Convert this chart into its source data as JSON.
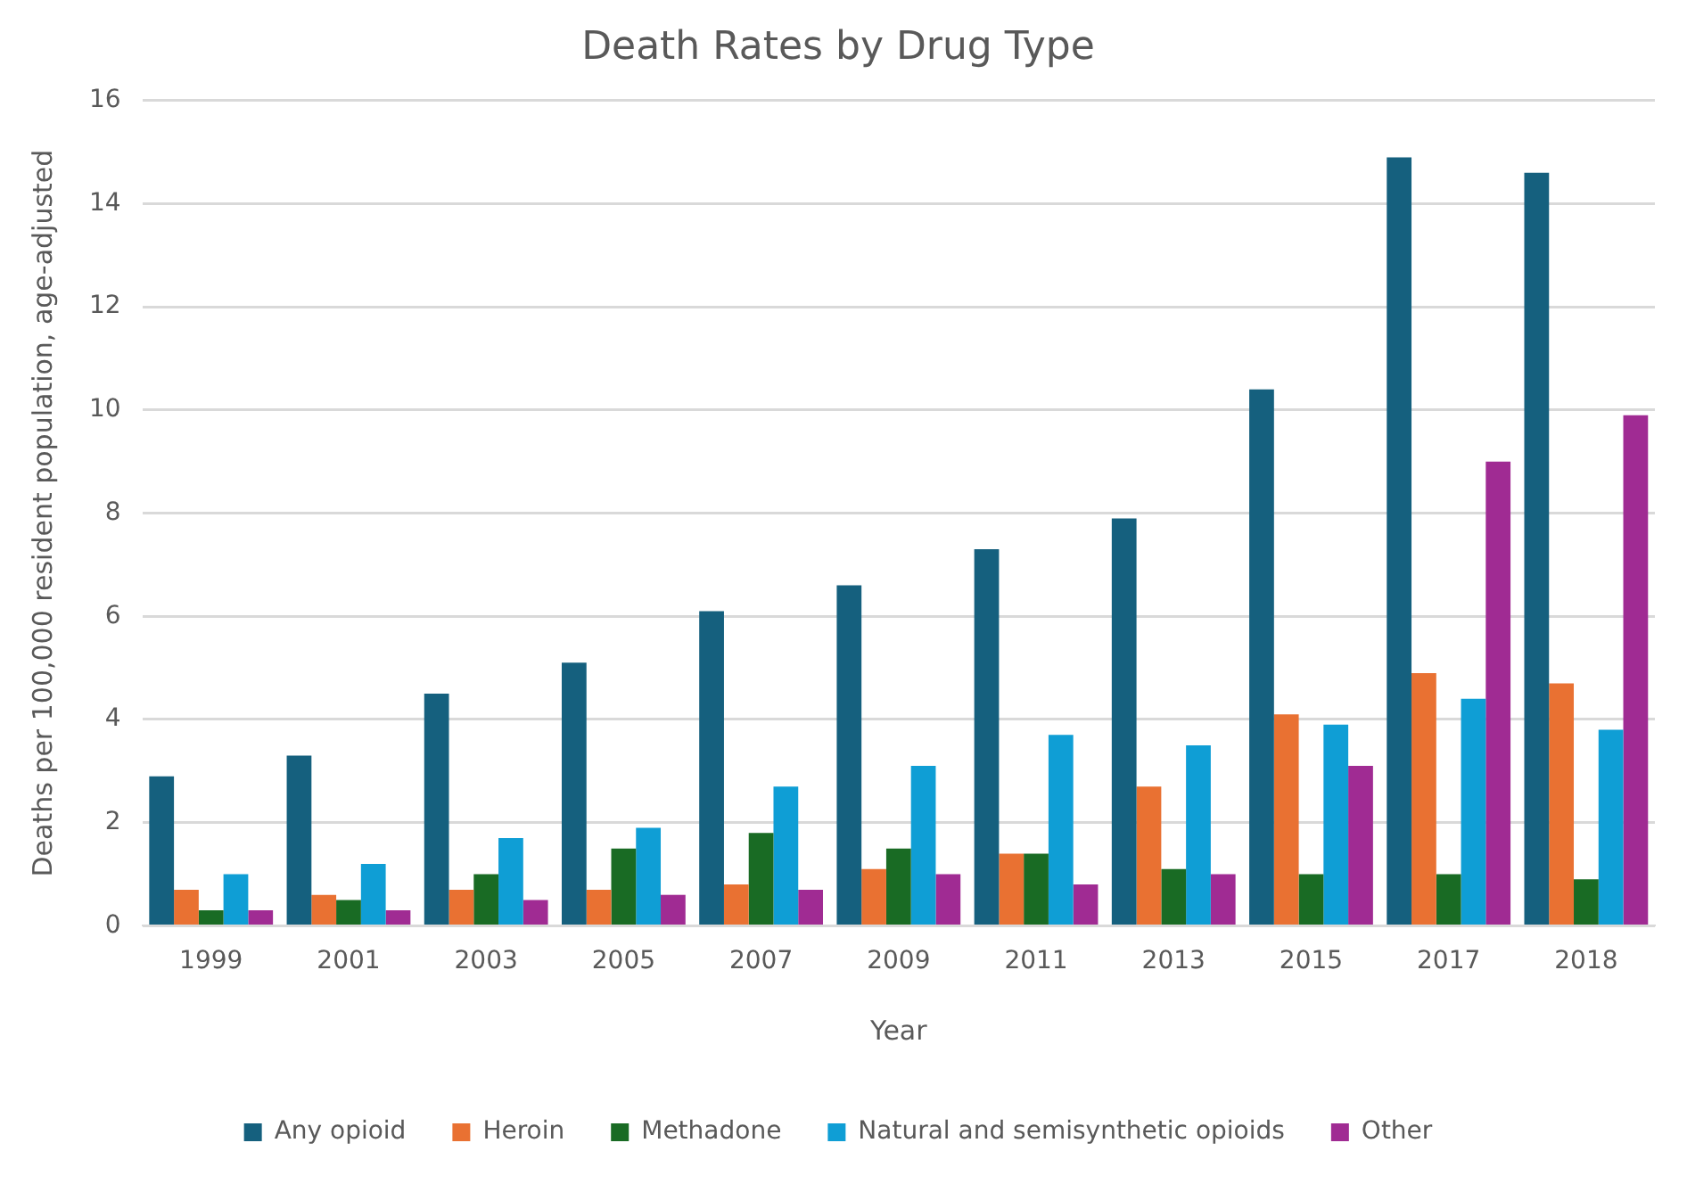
{
  "chart_data": {
    "type": "bar",
    "title": "Death Rates by Drug Type",
    "xlabel": "Year",
    "ylabel": "Deaths per 100,000 resident population, age-adjusted",
    "categories": [
      "1999",
      "2001",
      "2003",
      "2005",
      "2007",
      "2009",
      "2011",
      "2013",
      "2015",
      "2017",
      "2018"
    ],
    "series": [
      {
        "name": "Any opioid",
        "color": "#15607e",
        "values": [
          2.9,
          3.3,
          4.5,
          5.1,
          6.1,
          6.6,
          7.3,
          7.9,
          10.4,
          14.9,
          14.6
        ]
      },
      {
        "name": "Heroin",
        "color": "#e97132",
        "values": [
          0.7,
          0.6,
          0.7,
          0.7,
          0.8,
          1.1,
          1.4,
          2.7,
          4.1,
          4.9,
          4.7
        ]
      },
      {
        "name": "Methadone",
        "color": "#196b24",
        "values": [
          0.3,
          0.5,
          1.0,
          1.5,
          1.8,
          1.5,
          1.4,
          1.1,
          1.0,
          1.0,
          0.9
        ]
      },
      {
        "name": "Natural and semisynthetic opioids",
        "color": "#0f9ed5",
        "values": [
          1.0,
          1.2,
          1.7,
          1.9,
          2.7,
          3.1,
          3.7,
          3.5,
          3.9,
          4.4,
          3.8
        ]
      },
      {
        "name": "Other",
        "color": "#a02b93",
        "values": [
          0.3,
          0.3,
          0.5,
          0.6,
          0.7,
          1.0,
          0.8,
          1.0,
          3.1,
          9.0,
          9.9
        ]
      }
    ],
    "ylim": [
      0,
      16
    ],
    "yticks": [
      0,
      2,
      4,
      6,
      8,
      10,
      12,
      14,
      16
    ],
    "grid": "y",
    "legend": "bottom"
  }
}
